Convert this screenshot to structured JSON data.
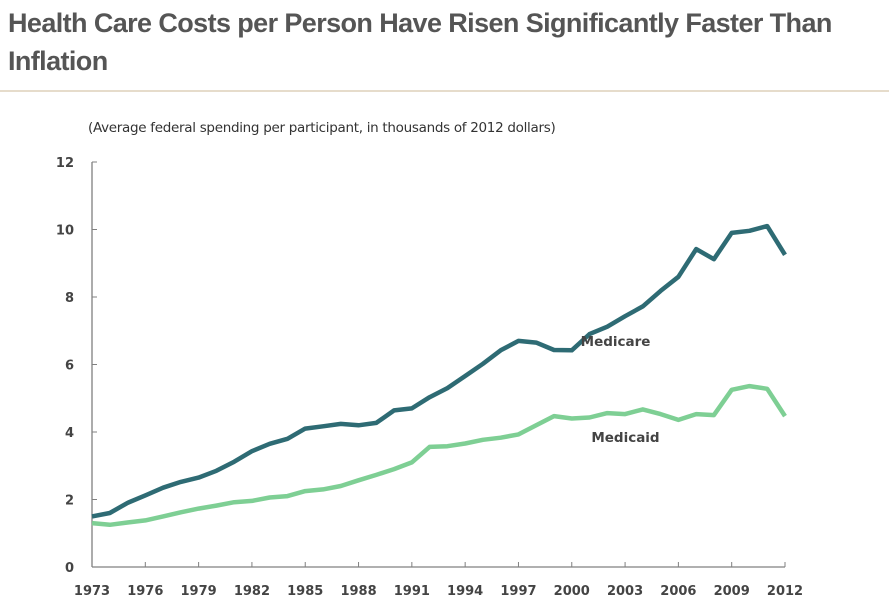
{
  "header": {
    "title": "Health Care Costs per Person Have Risen Significantly Faster Than Inflation"
  },
  "chart_data": {
    "type": "line",
    "title": "Health Care Costs per Person Have Risen Significantly Faster Than Inflation",
    "subtitle": "(Average federal spending per participant, in thousands of 2012 dollars)",
    "xlabel": "",
    "ylabel": "",
    "xlim": [
      1973,
      2012
    ],
    "ylim": [
      0,
      12
    ],
    "grid": false,
    "x_ticks": [
      1973,
      1976,
      1979,
      1982,
      1985,
      1988,
      1991,
      1994,
      1997,
      2000,
      2003,
      2006,
      2009,
      2012
    ],
    "y_ticks": [
      0,
      2,
      4,
      6,
      8,
      10,
      12
    ],
    "x": [
      1973,
      1974,
      1975,
      1976,
      1977,
      1978,
      1979,
      1980,
      1981,
      1982,
      1983,
      1984,
      1985,
      1986,
      1987,
      1988,
      1989,
      1990,
      1991,
      1992,
      1993,
      1994,
      1995,
      1996,
      1997,
      1998,
      1999,
      2000,
      2001,
      2002,
      2003,
      2004,
      2005,
      2006,
      2007,
      2008,
      2009,
      2010,
      2011,
      2012
    ],
    "series": [
      {
        "name": "Medicare",
        "color": "#2e6b74",
        "label_year": 2000.5,
        "label_value": 6.55,
        "values": [
          1.5,
          1.6,
          1.9,
          2.12,
          2.35,
          2.52,
          2.65,
          2.85,
          3.12,
          3.43,
          3.65,
          3.8,
          4.1,
          4.17,
          4.24,
          4.2,
          4.27,
          4.64,
          4.7,
          5.03,
          5.3,
          5.66,
          6.02,
          6.42,
          6.7,
          6.65,
          6.43,
          6.42,
          6.9,
          7.12,
          7.43,
          7.72,
          8.18,
          8.6,
          9.42,
          9.12,
          9.9,
          9.96,
          10.1,
          9.25
        ]
      },
      {
        "name": "Medicaid",
        "color": "#7ecf94",
        "label_year": 2001.1,
        "label_value": 3.7,
        "values": [
          1.3,
          1.25,
          1.32,
          1.38,
          1.5,
          1.62,
          1.73,
          1.82,
          1.92,
          1.96,
          2.06,
          2.1,
          2.25,
          2.3,
          2.4,
          2.57,
          2.73,
          2.9,
          3.1,
          3.56,
          3.58,
          3.66,
          3.77,
          3.83,
          3.93,
          4.2,
          4.47,
          4.4,
          4.43,
          4.56,
          4.53,
          4.67,
          4.53,
          4.36,
          4.53,
          4.5,
          5.25,
          5.36,
          5.28,
          4.47
        ]
      }
    ]
  }
}
